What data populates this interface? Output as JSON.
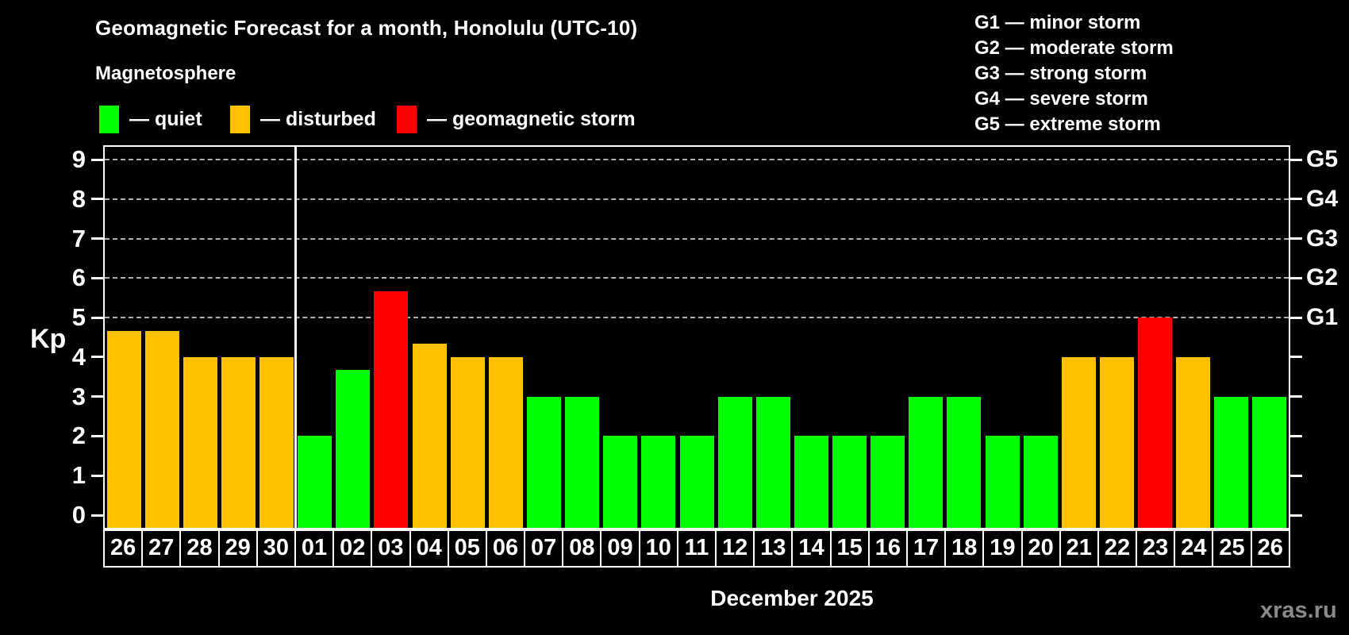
{
  "header": {
    "title": "Geomagnetic Forecast for a month, Honolulu (UTC-10)",
    "subtitle": "Magnetosphere"
  },
  "legend": {
    "items": [
      {
        "key": "quiet",
        "label": "— quiet"
      },
      {
        "key": "disturbed",
        "label": "— disturbed"
      },
      {
        "key": "storm",
        "label": "— geomagnetic storm"
      }
    ]
  },
  "g_legend": {
    "items": [
      {
        "text": "G1 — minor storm"
      },
      {
        "text": "G2 — moderate storm"
      },
      {
        "text": "G3 — strong storm"
      },
      {
        "text": "G4 — severe storm"
      },
      {
        "text": "G5 — extreme storm"
      }
    ]
  },
  "colors": {
    "quiet": "#00ff00",
    "disturbed": "#ffc000",
    "storm": "#ff0000",
    "background": "#000000",
    "axis": "#ffffff",
    "grid": "#b0b0b0",
    "watermark": "#8a8a8a"
  },
  "chart_data": {
    "type": "bar",
    "title": "Geomagnetic Forecast for a month, Honolulu (UTC-10)",
    "subtitle": "Magnetosphere",
    "ylabel": "Kp",
    "xlabel": "December 2025",
    "ylim": [
      0,
      9
    ],
    "yticks": [
      0,
      1,
      2,
      3,
      4,
      5,
      6,
      7,
      8,
      9
    ],
    "gridlines_at": [
      5,
      6,
      7,
      8,
      9
    ],
    "grid": true,
    "right_axis": [
      {
        "label": "G1",
        "kp": 5
      },
      {
        "label": "G2",
        "kp": 6
      },
      {
        "label": "G3",
        "kp": 7
      },
      {
        "label": "G4",
        "kp": 8
      },
      {
        "label": "G5",
        "kp": 9
      }
    ],
    "categories": [
      "26",
      "27",
      "28",
      "29",
      "30",
      "01",
      "02",
      "03",
      "04",
      "05",
      "06",
      "07",
      "08",
      "09",
      "10",
      "11",
      "12",
      "13",
      "14",
      "15",
      "16",
      "17",
      "18",
      "19",
      "20",
      "21",
      "22",
      "23",
      "24",
      "25",
      "26"
    ],
    "values": [
      4.67,
      4.67,
      4,
      4,
      4,
      2,
      3.67,
      5.67,
      4.33,
      4,
      4,
      3,
      3,
      2,
      2,
      2,
      3,
      3,
      2,
      2,
      2,
      3,
      3,
      2,
      2,
      4,
      4,
      5,
      4,
      3,
      3
    ],
    "statuses": [
      "disturbed",
      "disturbed",
      "disturbed",
      "disturbed",
      "disturbed",
      "quiet",
      "quiet",
      "storm",
      "disturbed",
      "disturbed",
      "disturbed",
      "quiet",
      "quiet",
      "quiet",
      "quiet",
      "quiet",
      "quiet",
      "quiet",
      "quiet",
      "quiet",
      "quiet",
      "quiet",
      "quiet",
      "quiet",
      "quiet",
      "disturbed",
      "disturbed",
      "storm",
      "disturbed",
      "quiet",
      "quiet"
    ],
    "separator_after_index": 5
  },
  "footer": {
    "month_label": "December 2025",
    "watermark": "xras.ru"
  }
}
